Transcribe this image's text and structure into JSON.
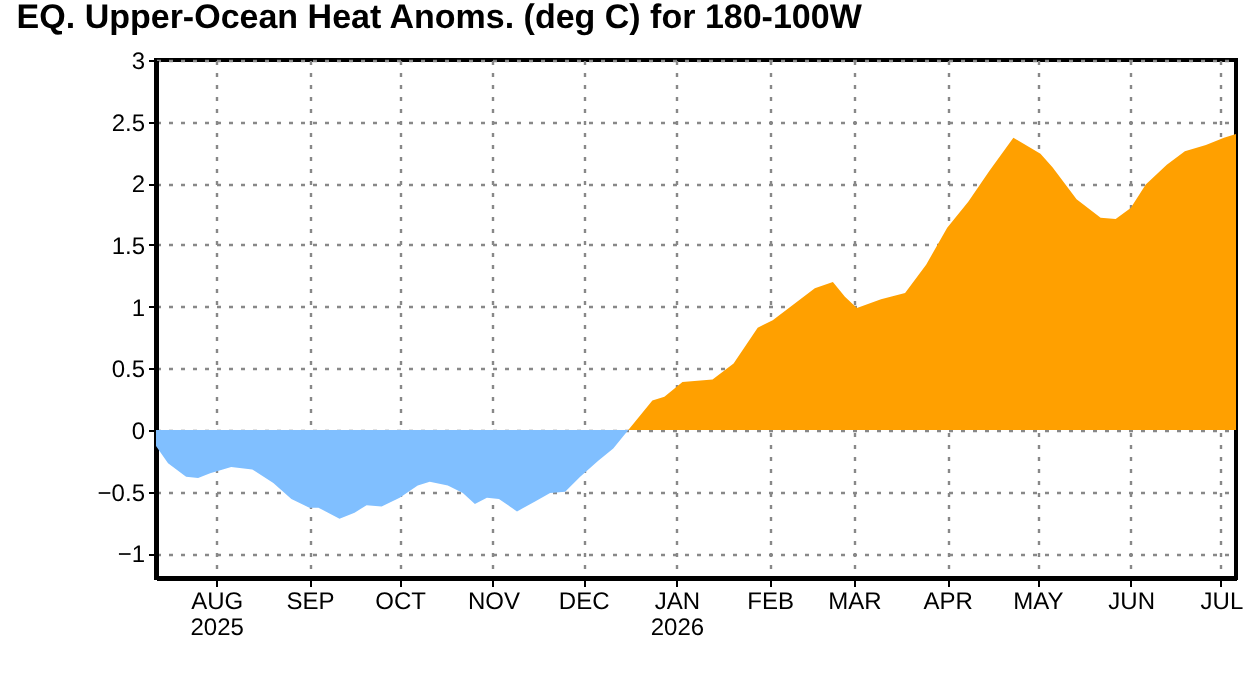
{
  "chart_data": {
    "type": "area",
    "title": "EQ. Upper-Ocean Heat Anoms. (deg C) for 180-100W",
    "series": [
      {
        "color": "#80bfff",
        "x": [
          "2025-07-12",
          "2025-07-16",
          "2025-07-22",
          "2025-07-26",
          "2025-07-30",
          "2025-08-06",
          "2025-08-13",
          "2025-08-20",
          "2025-08-26",
          "2025-09-01",
          "2025-09-04",
          "2025-09-11",
          "2025-09-16",
          "2025-09-20",
          "2025-09-25",
          "2025-10-01",
          "2025-10-07",
          "2025-10-11",
          "2025-10-17",
          "2025-10-22",
          "2025-10-26",
          "2025-10-30",
          "2025-11-03",
          "2025-11-09",
          "2025-11-15",
          "2025-11-20",
          "2025-11-25",
          "2025-11-30",
          "2025-12-06",
          "2025-12-11",
          "2025-12-16"
        ],
        "values": [
          -0.13,
          -0.27,
          -0.38,
          -0.39,
          -0.35,
          -0.3,
          -0.32,
          -0.43,
          -0.56,
          -0.63,
          -0.63,
          -0.72,
          -0.67,
          -0.61,
          -0.62,
          -0.55,
          -0.45,
          -0.42,
          -0.45,
          -0.51,
          -0.6,
          -0.55,
          -0.56,
          -0.66,
          -0.58,
          -0.51,
          -0.5,
          -0.38,
          -0.25,
          -0.15,
          0
        ]
      },
      {
        "color": "#ffa000",
        "x": [
          "2025-12-16",
          "2025-12-24",
          "2025-12-28",
          "2026-01-03",
          "2026-01-13",
          "2026-01-20",
          "2026-01-28",
          "2026-02-02",
          "2026-02-09",
          "2026-02-16",
          "2026-02-22",
          "2026-02-26",
          "2026-03-02",
          "2026-03-10",
          "2026-03-18",
          "2026-03-25",
          "2026-04-01",
          "2026-04-08",
          "2026-04-15",
          "2026-04-23",
          "2026-05-02",
          "2026-05-06",
          "2026-05-14",
          "2026-05-22",
          "2026-05-27",
          "2026-06-01",
          "2026-06-06",
          "2026-06-13",
          "2026-06-19",
          "2026-06-26",
          "2026-07-02",
          "2026-07-06"
        ],
        "values": [
          0,
          0.24,
          0.27,
          0.39,
          0.41,
          0.54,
          0.83,
          0.89,
          1.02,
          1.15,
          1.2,
          1.08,
          0.99,
          1.06,
          1.11,
          1.34,
          1.64,
          1.85,
          2.1,
          2.37,
          2.24,
          2.13,
          1.87,
          1.72,
          1.71,
          1.8,
          1.99,
          2.15,
          2.26,
          2.31,
          2.37,
          2.4
        ]
      }
    ],
    "xlim": [
      "2025-07-12",
      "2026-07-06"
    ],
    "xticks": [
      {
        "value": "2025-08-01",
        "label": "AUG 2025"
      },
      {
        "value": "2025-09-01",
        "label": "SEP"
      },
      {
        "value": "2025-10-01",
        "label": "OCT"
      },
      {
        "value": "2025-11-01",
        "label": "NOV"
      },
      {
        "value": "2025-12-01",
        "label": "DEC"
      },
      {
        "value": "2026-01-01",
        "label": "JAN 2026"
      },
      {
        "value": "2026-02-01",
        "label": "FEB"
      },
      {
        "value": "2026-03-01",
        "label": "MAR"
      },
      {
        "value": "2026-04-01",
        "label": "APR"
      },
      {
        "value": "2026-05-01",
        "label": "MAY"
      },
      {
        "value": "2026-06-01",
        "label": "JUN"
      },
      {
        "value": "2026-07-01",
        "label": "JUL"
      }
    ],
    "ylim": [
      -1.2,
      3
    ],
    "yticks": [
      -1,
      -0.5,
      0,
      0.5,
      1,
      1.5,
      2,
      2.5,
      3
    ],
    "grid": true
  }
}
